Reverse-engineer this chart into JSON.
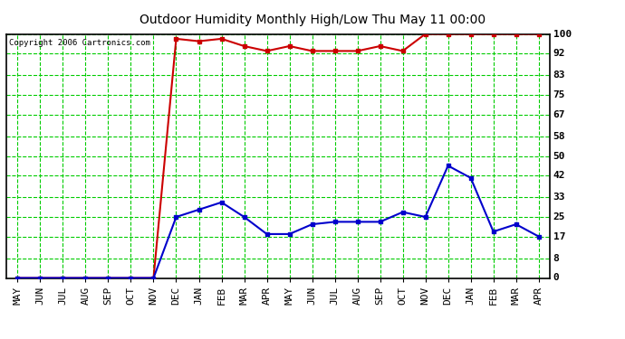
{
  "title": "Outdoor Humidity Monthly High/Low Thu May 11 00:00",
  "copyright": "Copyright 2006 Cartronics.com",
  "x_labels": [
    "MAY",
    "JUN",
    "JUL",
    "AUG",
    "SEP",
    "OCT",
    "NOV",
    "DEC",
    "JAN",
    "FEB",
    "MAR",
    "APR",
    "MAY",
    "JUN",
    "JUL",
    "AUG",
    "SEP",
    "OCT",
    "NOV",
    "DEC",
    "JAN",
    "FEB",
    "MAR",
    "APR"
  ],
  "high_values": [
    0,
    0,
    0,
    0,
    0,
    0,
    0,
    98,
    97,
    98,
    95,
    93,
    95,
    93,
    93,
    93,
    95,
    93,
    100,
    100,
    100,
    100,
    100,
    100
  ],
  "low_values": [
    0,
    0,
    0,
    0,
    0,
    0,
    0,
    25,
    28,
    31,
    25,
    18,
    18,
    22,
    23,
    23,
    23,
    27,
    25,
    46,
    41,
    19,
    22,
    17
  ],
  "yticks": [
    0,
    8,
    17,
    25,
    33,
    42,
    50,
    58,
    67,
    75,
    83,
    92,
    100
  ],
  "ymin": 0,
  "ymax": 100,
  "bg_color": "#ffffff",
  "grid_color": "#00cc00",
  "high_color": "#cc0000",
  "low_color": "#0000cc",
  "title_color": "#000000",
  "border_color": "#000000",
  "marker": "s",
  "marker_size": 3,
  "title_fontsize": 10,
  "tick_fontsize": 8
}
